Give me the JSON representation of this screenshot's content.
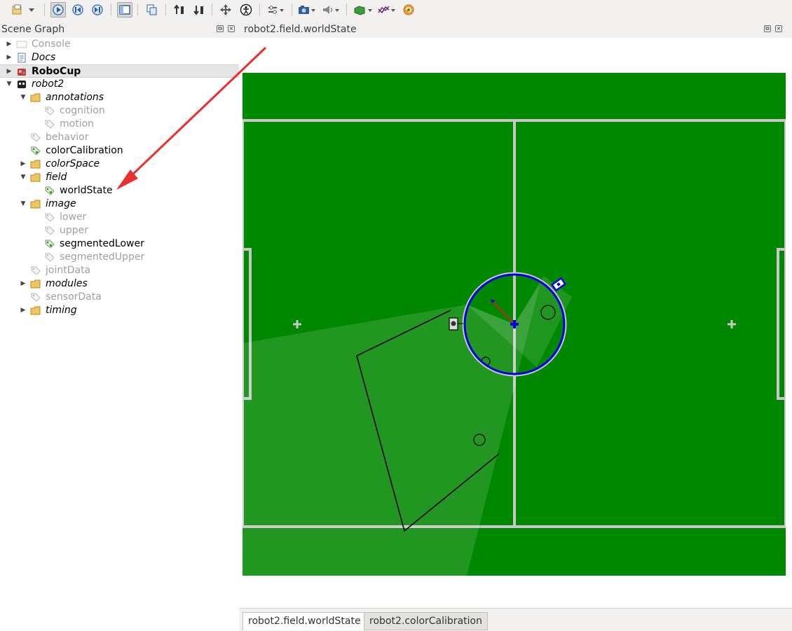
{
  "toolbar": {
    "buttons": [
      "open-icon",
      "dropdown-icon",
      "play-icon",
      "step-back-icon",
      "step-forward-icon",
      "layout-icon",
      "copy-icon",
      "sort-up-icon",
      "sort-down-icon",
      "move-icon",
      "person-icon",
      "options-icon",
      "camera-icon",
      "sound-icon",
      "render-icon",
      "graph-icon",
      "refresh-icon"
    ]
  },
  "scene_graph": {
    "title": "Scene Graph",
    "items": [
      {
        "label": "Console",
        "depth": 0,
        "arrow": "collapsed",
        "icon": "console-icon",
        "style": "dim"
      },
      {
        "label": "Docs",
        "depth": 0,
        "arrow": "collapsed",
        "icon": "document-icon",
        "style": "italic"
      },
      {
        "label": "RoboCup",
        "depth": 0,
        "arrow": "collapsed",
        "icon": "robocup-icon",
        "style": "bold",
        "selected": true
      },
      {
        "label": "robot2",
        "depth": 0,
        "arrow": "expanded",
        "icon": "robot-icon",
        "style": "italic"
      },
      {
        "label": "annotations",
        "depth": 1,
        "arrow": "expanded",
        "icon": "folder-icon",
        "style": "italic"
      },
      {
        "label": "cognition",
        "depth": 2,
        "arrow": "none",
        "icon": "tag-icon",
        "style": "dim"
      },
      {
        "label": "motion",
        "depth": 2,
        "arrow": "none",
        "icon": "tag-icon",
        "style": "dim"
      },
      {
        "label": "behavior",
        "depth": 1,
        "arrow": "none",
        "icon": "tag-icon",
        "style": "dim"
      },
      {
        "label": "colorCalibration",
        "depth": 1,
        "arrow": "none",
        "icon": "tag-active-icon",
        "style": "normal"
      },
      {
        "label": "colorSpace",
        "depth": 1,
        "arrow": "collapsed",
        "icon": "folder-icon",
        "style": "italic"
      },
      {
        "label": "field",
        "depth": 1,
        "arrow": "expanded",
        "icon": "folder-icon",
        "style": "italic"
      },
      {
        "label": "worldState",
        "depth": 2,
        "arrow": "none",
        "icon": "tag-active-icon",
        "style": "normal"
      },
      {
        "label": "image",
        "depth": 1,
        "arrow": "expanded",
        "icon": "folder-icon",
        "style": "italic"
      },
      {
        "label": "lower",
        "depth": 2,
        "arrow": "none",
        "icon": "tag-icon",
        "style": "dim"
      },
      {
        "label": "upper",
        "depth": 2,
        "arrow": "none",
        "icon": "tag-icon",
        "style": "dim"
      },
      {
        "label": "segmentedLower",
        "depth": 2,
        "arrow": "none",
        "icon": "tag-active-icon",
        "style": "normal"
      },
      {
        "label": "segmentedUpper",
        "depth": 2,
        "arrow": "none",
        "icon": "tag-icon",
        "style": "dim"
      },
      {
        "label": "jointData",
        "depth": 1,
        "arrow": "none",
        "icon": "tag-icon",
        "style": "dim"
      },
      {
        "label": "modules",
        "depth": 1,
        "arrow": "collapsed",
        "icon": "folder-icon",
        "style": "italic"
      },
      {
        "label": "sensorData",
        "depth": 1,
        "arrow": "none",
        "icon": "tag-icon",
        "style": "dim"
      },
      {
        "label": "timing",
        "depth": 1,
        "arrow": "collapsed",
        "icon": "folder-icon",
        "style": "italic"
      }
    ]
  },
  "view": {
    "title": "robot2.field.worldState",
    "tabs": [
      {
        "label": "robot2.field.worldState",
        "active": true
      },
      {
        "label": "robot2.colorCalibration",
        "active": false
      }
    ]
  },
  "colors": {
    "field": "#008800",
    "lines": "#c8c8c8",
    "robot": "#0000dd",
    "callout": "#e8302f"
  }
}
